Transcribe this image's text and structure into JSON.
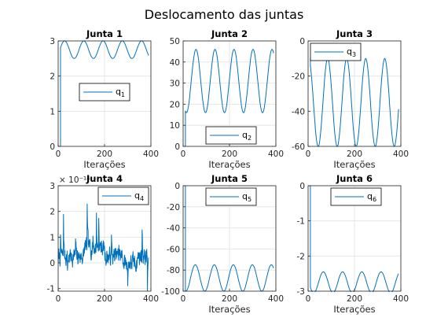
{
  "figure": {
    "suptitle": "Deslocamento das juntas"
  },
  "colors": {
    "line": "#0072bd",
    "grid": "#e6e6e6",
    "axis": "#262626"
  },
  "chart_data": [
    {
      "type": "line",
      "title": "Junta 1",
      "xlabel": "Iterações",
      "ylabel": "",
      "xlim": [
        0,
        400
      ],
      "ylim": [
        0,
        3
      ],
      "grid": true,
      "legend_placement": "center",
      "x_ticks": [
        {
          "v": 0,
          "label": "0"
        },
        {
          "v": 200,
          "label": "200"
        },
        {
          "v": 400,
          "label": "400"
        }
      ],
      "y_ticks": [
        {
          "v": 0,
          "label": "0"
        },
        {
          "v": 1,
          "label": "1"
        },
        {
          "v": 2,
          "label": "2"
        },
        {
          "v": 3,
          "label": "3"
        }
      ],
      "series": [
        {
          "name": "q",
          "name_sub": "1",
          "signal": {
            "kind": "sine",
            "x_start": 10,
            "x_end": 390,
            "mean": 2.75,
            "amp": 0.25,
            "period": 83,
            "phase": 7,
            "initial_drop_to": 0
          }
        }
      ]
    },
    {
      "type": "line",
      "title": "Junta 2",
      "xlabel": "Iterações",
      "ylabel": "",
      "xlim": [
        0,
        400
      ],
      "ylim": [
        0,
        50
      ],
      "grid": true,
      "legend_placement": "bottom",
      "x_ticks": [
        {
          "v": 0,
          "label": "0"
        },
        {
          "v": 200,
          "label": "200"
        },
        {
          "v": 400,
          "label": "400"
        }
      ],
      "y_ticks": [
        {
          "v": 0,
          "label": "0"
        },
        {
          "v": 10,
          "label": "10"
        },
        {
          "v": 20,
          "label": "20"
        },
        {
          "v": 30,
          "label": "30"
        },
        {
          "v": 40,
          "label": "40"
        },
        {
          "v": 50,
          "label": "50"
        }
      ],
      "series": [
        {
          "name": "q",
          "name_sub": "2",
          "signal": {
            "kind": "sine",
            "x_start": 10,
            "x_end": 390,
            "mean": 31,
            "amp": 15,
            "period": 82,
            "phase": 35,
            "initial_drop_to": 0
          }
        }
      ]
    },
    {
      "type": "line",
      "title": "Junta 3",
      "xlabel": "Iterações",
      "ylabel": "",
      "xlim": [
        0,
        400
      ],
      "ylim": [
        -60,
        0
      ],
      "grid": true,
      "legend_placement": "top-left",
      "x_ticks": [
        {
          "v": 0,
          "label": "0"
        },
        {
          "v": 200,
          "label": "200"
        },
        {
          "v": 400,
          "label": "400"
        }
      ],
      "y_ticks": [
        {
          "v": 0,
          "label": "0"
        },
        {
          "v": -20,
          "label": "-20"
        },
        {
          "v": -40,
          "label": "-40"
        },
        {
          "v": -60,
          "label": "-60"
        }
      ],
      "series": [
        {
          "name": "q",
          "name_sub": "3",
          "signal": {
            "kind": "sine",
            "x_start": 10,
            "x_end": 390,
            "mean": -35,
            "amp": 25,
            "period": 82,
            "phase": 64,
            "initial_drop_to": -10
          }
        }
      ]
    },
    {
      "type": "line",
      "title": "Junta 4",
      "xlabel": "",
      "ylabel": "",
      "y_multiplier": "× 10⁻¹⁴",
      "xlim": [
        0,
        400
      ],
      "ylim": [
        -1.1,
        3
      ],
      "grid": true,
      "legend_placement": "top-right",
      "x_ticks": [
        {
          "v": 0,
          "label": "0"
        },
        {
          "v": 200,
          "label": "200"
        },
        {
          "v": 400,
          "label": "400"
        }
      ],
      "y_ticks": [
        {
          "v": 3,
          "label": "3"
        },
        {
          "v": 2,
          "label": "2"
        },
        {
          "v": 1,
          "label": "1"
        },
        {
          "v": 0,
          "label": "0"
        },
        {
          "v": -1,
          "label": "-1"
        }
      ],
      "series": [
        {
          "name": "q",
          "name_sub": "4",
          "signal": {
            "kind": "noise",
            "x_start": 0,
            "x_end": 390,
            "mean": 0.25,
            "amp": 0.45,
            "seed": 7,
            "spikes": [
              [
                10,
                1.1
              ],
              [
                23,
                1.9
              ],
              [
                40,
                -0.3
              ],
              [
                75,
                0.95
              ],
              [
                125,
                2.3
              ],
              [
                150,
                1.05
              ],
              [
                165,
                1.95
              ],
              [
                175,
                1.75
              ],
              [
                230,
                1.1
              ],
              [
                262,
                0.7
              ],
              [
                300,
                -0.9
              ],
              [
                362,
                1.3
              ],
              [
                385,
                -1.1
              ]
            ]
          }
        }
      ]
    },
    {
      "type": "line",
      "title": "Junta 5",
      "xlabel": "Iterações",
      "ylabel": "",
      "xlim": [
        0,
        400
      ],
      "ylim": [
        -100,
        0
      ],
      "grid": true,
      "legend_placement": "top-center",
      "x_ticks": [
        {
          "v": 0,
          "label": "0"
        },
        {
          "v": 200,
          "label": "200"
        },
        {
          "v": 400,
          "label": "400"
        }
      ],
      "y_ticks": [
        {
          "v": 0,
          "label": "0"
        },
        {
          "v": -20,
          "label": "-20"
        },
        {
          "v": -40,
          "label": "-40"
        },
        {
          "v": -60,
          "label": "-60"
        },
        {
          "v": -80,
          "label": "-80"
        },
        {
          "v": -100,
          "label": "-100"
        }
      ],
      "series": [
        {
          "name": "q",
          "name_sub": "5",
          "signal": {
            "kind": "sine",
            "x_start": 10,
            "x_end": 390,
            "mean": -87.5,
            "amp": 12.5,
            "period": 82,
            "phase": 32,
            "initial_drop_to": 0
          }
        }
      ]
    },
    {
      "type": "line",
      "title": "Junta 6",
      "xlabel": "Iterações",
      "ylabel": "",
      "xlim": [
        0,
        400
      ],
      "ylim": [
        -3,
        0
      ],
      "grid": true,
      "legend_placement": "top-center",
      "x_ticks": [
        {
          "v": 0,
          "label": "0"
        },
        {
          "v": 200,
          "label": "200"
        },
        {
          "v": 400,
          "label": "400"
        }
      ],
      "y_ticks": [
        {
          "v": 0,
          "label": "0"
        },
        {
          "v": -1,
          "label": "-1"
        },
        {
          "v": -2,
          "label": "-2"
        },
        {
          "v": -3,
          "label": "-3"
        }
      ],
      "series": [
        {
          "name": "q",
          "name_sub": "6",
          "signal": {
            "kind": "sine",
            "x_start": 10,
            "x_end": 390,
            "mean": -2.75,
            "amp": 0.3,
            "period": 83,
            "phase": 45,
            "initial_drop_to": 0
          }
        }
      ]
    }
  ]
}
